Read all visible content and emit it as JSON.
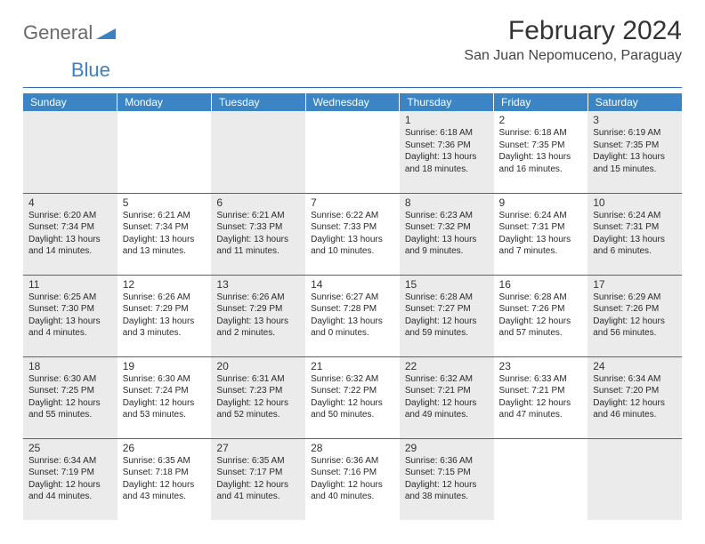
{
  "logo": {
    "word1": "General",
    "word2": "Blue"
  },
  "title": "February 2024",
  "location": "San Juan Nepomuceno, Paraguay",
  "colors": {
    "header_bg": "#3b85c5",
    "header_text": "#ffffff",
    "divider": "#2e6da8",
    "shaded_bg": "#ebebeb",
    "text": "#2a2a2a",
    "logo_gray": "#6a6a6a",
    "logo_blue": "#3b81c2"
  },
  "day_headers": [
    "Sunday",
    "Monday",
    "Tuesday",
    "Wednesday",
    "Thursday",
    "Friday",
    "Saturday"
  ],
  "weeks": [
    [
      {
        "shaded": true
      },
      {},
      {
        "shaded": true
      },
      {},
      {
        "shaded": true,
        "n": "1",
        "sr": "Sunrise: 6:18 AM",
        "ss": "Sunset: 7:36 PM",
        "d1": "Daylight: 13 hours",
        "d2": "and 18 minutes."
      },
      {
        "n": "2",
        "sr": "Sunrise: 6:18 AM",
        "ss": "Sunset: 7:35 PM",
        "d1": "Daylight: 13 hours",
        "d2": "and 16 minutes."
      },
      {
        "shaded": true,
        "n": "3",
        "sr": "Sunrise: 6:19 AM",
        "ss": "Sunset: 7:35 PM",
        "d1": "Daylight: 13 hours",
        "d2": "and 15 minutes."
      }
    ],
    [
      {
        "shaded": true,
        "n": "4",
        "sr": "Sunrise: 6:20 AM",
        "ss": "Sunset: 7:34 PM",
        "d1": "Daylight: 13 hours",
        "d2": "and 14 minutes."
      },
      {
        "n": "5",
        "sr": "Sunrise: 6:21 AM",
        "ss": "Sunset: 7:34 PM",
        "d1": "Daylight: 13 hours",
        "d2": "and 13 minutes."
      },
      {
        "shaded": true,
        "n": "6",
        "sr": "Sunrise: 6:21 AM",
        "ss": "Sunset: 7:33 PM",
        "d1": "Daylight: 13 hours",
        "d2": "and 11 minutes."
      },
      {
        "n": "7",
        "sr": "Sunrise: 6:22 AM",
        "ss": "Sunset: 7:33 PM",
        "d1": "Daylight: 13 hours",
        "d2": "and 10 minutes."
      },
      {
        "shaded": true,
        "n": "8",
        "sr": "Sunrise: 6:23 AM",
        "ss": "Sunset: 7:32 PM",
        "d1": "Daylight: 13 hours",
        "d2": "and 9 minutes."
      },
      {
        "n": "9",
        "sr": "Sunrise: 6:24 AM",
        "ss": "Sunset: 7:31 PM",
        "d1": "Daylight: 13 hours",
        "d2": "and 7 minutes."
      },
      {
        "shaded": true,
        "n": "10",
        "sr": "Sunrise: 6:24 AM",
        "ss": "Sunset: 7:31 PM",
        "d1": "Daylight: 13 hours",
        "d2": "and 6 minutes."
      }
    ],
    [
      {
        "shaded": true,
        "n": "11",
        "sr": "Sunrise: 6:25 AM",
        "ss": "Sunset: 7:30 PM",
        "d1": "Daylight: 13 hours",
        "d2": "and 4 minutes."
      },
      {
        "n": "12",
        "sr": "Sunrise: 6:26 AM",
        "ss": "Sunset: 7:29 PM",
        "d1": "Daylight: 13 hours",
        "d2": "and 3 minutes."
      },
      {
        "shaded": true,
        "n": "13",
        "sr": "Sunrise: 6:26 AM",
        "ss": "Sunset: 7:29 PM",
        "d1": "Daylight: 13 hours",
        "d2": "and 2 minutes."
      },
      {
        "n": "14",
        "sr": "Sunrise: 6:27 AM",
        "ss": "Sunset: 7:28 PM",
        "d1": "Daylight: 13 hours",
        "d2": "and 0 minutes."
      },
      {
        "shaded": true,
        "n": "15",
        "sr": "Sunrise: 6:28 AM",
        "ss": "Sunset: 7:27 PM",
        "d1": "Daylight: 12 hours",
        "d2": "and 59 minutes."
      },
      {
        "n": "16",
        "sr": "Sunrise: 6:28 AM",
        "ss": "Sunset: 7:26 PM",
        "d1": "Daylight: 12 hours",
        "d2": "and 57 minutes."
      },
      {
        "shaded": true,
        "n": "17",
        "sr": "Sunrise: 6:29 AM",
        "ss": "Sunset: 7:26 PM",
        "d1": "Daylight: 12 hours",
        "d2": "and 56 minutes."
      }
    ],
    [
      {
        "shaded": true,
        "n": "18",
        "sr": "Sunrise: 6:30 AM",
        "ss": "Sunset: 7:25 PM",
        "d1": "Daylight: 12 hours",
        "d2": "and 55 minutes."
      },
      {
        "n": "19",
        "sr": "Sunrise: 6:30 AM",
        "ss": "Sunset: 7:24 PM",
        "d1": "Daylight: 12 hours",
        "d2": "and 53 minutes."
      },
      {
        "shaded": true,
        "n": "20",
        "sr": "Sunrise: 6:31 AM",
        "ss": "Sunset: 7:23 PM",
        "d1": "Daylight: 12 hours",
        "d2": "and 52 minutes."
      },
      {
        "n": "21",
        "sr": "Sunrise: 6:32 AM",
        "ss": "Sunset: 7:22 PM",
        "d1": "Daylight: 12 hours",
        "d2": "and 50 minutes."
      },
      {
        "shaded": true,
        "n": "22",
        "sr": "Sunrise: 6:32 AM",
        "ss": "Sunset: 7:21 PM",
        "d1": "Daylight: 12 hours",
        "d2": "and 49 minutes."
      },
      {
        "n": "23",
        "sr": "Sunrise: 6:33 AM",
        "ss": "Sunset: 7:21 PM",
        "d1": "Daylight: 12 hours",
        "d2": "and 47 minutes."
      },
      {
        "shaded": true,
        "n": "24",
        "sr": "Sunrise: 6:34 AM",
        "ss": "Sunset: 7:20 PM",
        "d1": "Daylight: 12 hours",
        "d2": "and 46 minutes."
      }
    ],
    [
      {
        "shaded": true,
        "n": "25",
        "sr": "Sunrise: 6:34 AM",
        "ss": "Sunset: 7:19 PM",
        "d1": "Daylight: 12 hours",
        "d2": "and 44 minutes."
      },
      {
        "n": "26",
        "sr": "Sunrise: 6:35 AM",
        "ss": "Sunset: 7:18 PM",
        "d1": "Daylight: 12 hours",
        "d2": "and 43 minutes."
      },
      {
        "shaded": true,
        "n": "27",
        "sr": "Sunrise: 6:35 AM",
        "ss": "Sunset: 7:17 PM",
        "d1": "Daylight: 12 hours",
        "d2": "and 41 minutes."
      },
      {
        "n": "28",
        "sr": "Sunrise: 6:36 AM",
        "ss": "Sunset: 7:16 PM",
        "d1": "Daylight: 12 hours",
        "d2": "and 40 minutes."
      },
      {
        "shaded": true,
        "n": "29",
        "sr": "Sunrise: 6:36 AM",
        "ss": "Sunset: 7:15 PM",
        "d1": "Daylight: 12 hours",
        "d2": "and 38 minutes."
      },
      {},
      {
        "shaded": true
      }
    ]
  ]
}
